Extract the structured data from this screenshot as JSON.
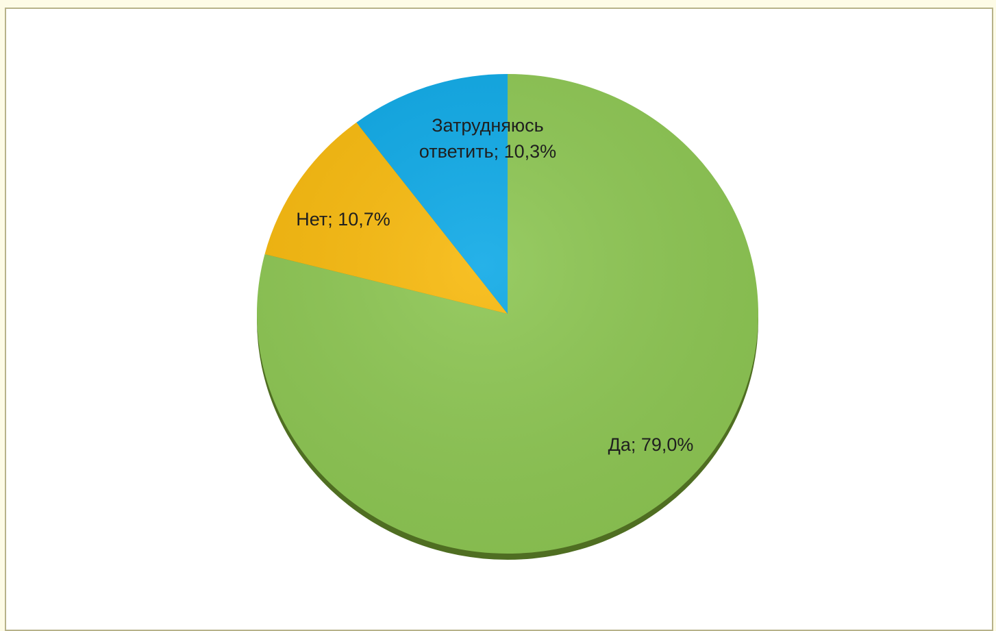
{
  "chart_data": {
    "type": "pie",
    "title": "",
    "slices": [
      {
        "label": "Да",
        "value": 79.0,
        "data_label": "Да; 79,0%",
        "color": "#8dc653"
      },
      {
        "label": "Нет",
        "value": 10.7,
        "data_label": "Нет; 10,7%",
        "color": "#f7b90d"
      },
      {
        "label": "Затрудняюсь ответить",
        "value": 10.3,
        "data_label_lines": [
          "Затрудняюсь",
          "ответить; 10,3%"
        ],
        "color": "#0ea9e6"
      }
    ],
    "start_angle": "12 o'clock",
    "direction": "clockwise",
    "legend": "none",
    "style": "3d-shadow"
  }
}
